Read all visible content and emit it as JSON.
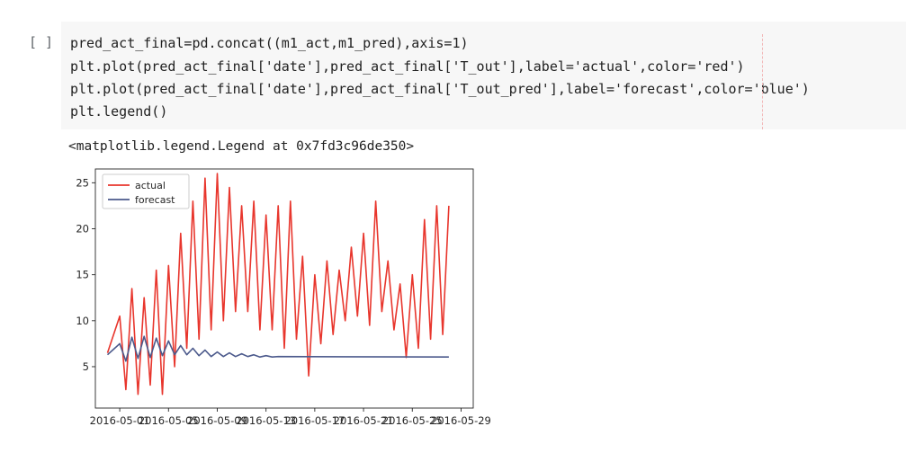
{
  "cell": {
    "run_indicator": "[ ]",
    "code_lines": [
      "pred_act_final=pd.concat((m1_act,m1_pred),axis=1)",
      "plt.plot(pred_act_final['date'],pred_act_final['T_out'],label='actual',color='red')",
      "plt.plot(pred_act_final['date'],pred_act_final['T_out_pred'],label='forecast',color='blue')",
      "plt.legend()"
    ]
  },
  "output": {
    "text": "<matplotlib.legend.Legend at 0x7fd3c96de350>"
  },
  "chart_data": {
    "type": "line",
    "x_ticks": [
      "2016-05-01",
      "2016-05-05",
      "2016-05-09",
      "2016-05-13",
      "2016-05-17",
      "2016-05-21",
      "2016-05-25",
      "2016-05-29"
    ],
    "y_ticks": [
      5,
      10,
      15,
      20,
      25
    ],
    "xlim": [
      "2016-04-29",
      "2016-05-30"
    ],
    "ylim": [
      0.5,
      26.5
    ],
    "legend_position": "upper-left",
    "series": [
      {
        "name": "actual",
        "color": "#e8362d",
        "x": [
          "2016-04-30",
          "2016-05-01",
          "2016-05-01",
          "2016-05-02",
          "2016-05-02",
          "2016-05-03",
          "2016-05-03",
          "2016-05-04",
          "2016-05-04",
          "2016-05-05",
          "2016-05-05",
          "2016-05-06",
          "2016-05-06",
          "2016-05-07",
          "2016-05-07",
          "2016-05-08",
          "2016-05-08",
          "2016-05-09",
          "2016-05-09",
          "2016-05-10",
          "2016-05-10",
          "2016-05-11",
          "2016-05-11",
          "2016-05-12",
          "2016-05-12",
          "2016-05-13",
          "2016-05-13",
          "2016-05-14",
          "2016-05-14",
          "2016-05-15",
          "2016-05-15",
          "2016-05-16",
          "2016-05-16",
          "2016-05-17",
          "2016-05-17",
          "2016-05-18",
          "2016-05-18",
          "2016-05-19",
          "2016-05-19",
          "2016-05-20",
          "2016-05-20",
          "2016-05-21",
          "2016-05-21",
          "2016-05-22",
          "2016-05-22",
          "2016-05-23",
          "2016-05-23",
          "2016-05-24",
          "2016-05-24",
          "2016-05-25",
          "2016-05-25",
          "2016-05-26",
          "2016-05-26",
          "2016-05-27",
          "2016-05-27",
          "2016-05-28"
        ],
        "y": [
          6.5,
          10.5,
          2.5,
          13.5,
          2,
          12.5,
          3,
          15.5,
          2,
          16,
          5,
          19.5,
          7,
          23,
          8,
          25.5,
          9,
          26,
          10,
          24.5,
          11,
          22.5,
          11,
          23,
          9,
          21.5,
          9,
          22.5,
          7,
          23,
          8,
          17,
          4,
          15,
          7.5,
          16.5,
          8.5,
          15.5,
          10,
          18,
          10.5,
          19.5,
          9.5,
          23,
          11,
          16.5,
          9,
          14,
          6,
          15,
          7,
          21,
          8,
          22.5,
          8.5,
          22.5
        ]
      },
      {
        "name": "forecast",
        "color": "#4c5a8c",
        "x": [
          "2016-04-30",
          "2016-05-01",
          "2016-05-01",
          "2016-05-02",
          "2016-05-02",
          "2016-05-03",
          "2016-05-03",
          "2016-05-04",
          "2016-05-04",
          "2016-05-05",
          "2016-05-05",
          "2016-05-06",
          "2016-05-06",
          "2016-05-07",
          "2016-05-07",
          "2016-05-08",
          "2016-05-08",
          "2016-05-09",
          "2016-05-09",
          "2016-05-10",
          "2016-05-10",
          "2016-05-11",
          "2016-05-11",
          "2016-05-12",
          "2016-05-12",
          "2016-05-13",
          "2016-05-13",
          "2016-05-14",
          "2016-05-28"
        ],
        "y": [
          6.3,
          7.5,
          5.6,
          8.2,
          5.9,
          8.3,
          6.0,
          8.1,
          6.2,
          7.8,
          6.3,
          7.3,
          6.3,
          7.0,
          6.2,
          6.8,
          6.1,
          6.6,
          6.1,
          6.5,
          6.1,
          6.4,
          6.1,
          6.3,
          6.05,
          6.2,
          6.05,
          6.1,
          6.05
        ]
      }
    ]
  }
}
